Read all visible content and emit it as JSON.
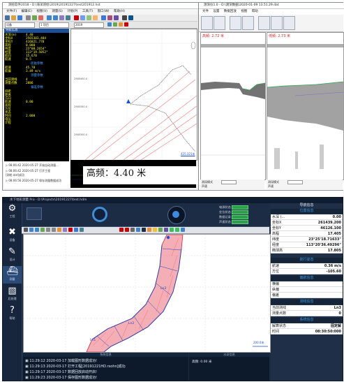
{
  "top": {
    "left_app": {
      "title": "测绘软件2018 - D:\\海洋测绘\\2019\\20191227\\test201912.hst",
      "menu": [
        "文件(F)",
        "编辑(E)",
        "视图(V)",
        "测量(S)",
        "计划(P)",
        "工具(T)",
        "窗口(W)",
        "帮助(H)"
      ],
      "selectors": [
        "设备",
        "1 项目",
        "2019"
      ],
      "info_title": "导航信息",
      "info_rows": [
        {
          "k": "水深(m)",
          "v": "4.40"
        },
        {
          "k": "坐标X",
          "v": "2565303.484"
        },
        {
          "k": "坐标Y",
          "v": "416021.778"
        },
        {
          "k": "高程",
          "v": "0.000"
        },
        {
          "k": "纬度",
          "v": "23°08.2654\""
        },
        {
          "k": "经度",
          "v": "113°19.5052\""
        },
        {
          "k": "航向",
          "v": "15.670"
        },
        {
          "k": "航速",
          "v": "0.5"
        }
      ],
      "section_1": "船舶参数",
      "info_rows_2": [
        {
          "k": "船速",
          "v": "45.78"
        },
        {
          "k": "航偏",
          "v": "3.49 m/s"
        }
      ],
      "section_2": "测量参数",
      "info_rows_3": [
        {
          "k": "当前测线",
          "v": "4"
        },
        {
          "k": "测量点数",
          "v": "2886"
        }
      ],
      "section_3": "偏差参数",
      "info_rows_4": [
        {
          "k": "斜距",
          "v": ""
        },
        {
          "k": "距离",
          "v": ""
        },
        {
          "k": "方向",
          "v": ""
        },
        {
          "k": "航速",
          "v": "0.00"
        },
        {
          "k": "高程",
          "v": ""
        },
        {
          "k": "方位",
          "v": ""
        },
        {
          "k": "状态",
          "v": ""
        },
        {
          "k": "时间",
          "v": "2.000"
        },
        {
          "k": "电压",
          "v": ""
        },
        {
          "k": "计程",
          "v": ""
        }
      ],
      "log_lines": [
        "▷ 08:06:42 2020-05-27 开始自动测量...",
        "▷ 08:06:42 2020-05-27 打开工程",
        "[测绘.dat]成功",
        "▷ 08:06:56 2020-05-27 保存测量数据成功"
      ],
      "scale_label": "425.321米",
      "overlay_label": "高频",
      "overlay_value": "4.40",
      "overlay_unit": "米"
    },
    "right_app": {
      "title": "测深仪1.0 - D:\\测深数据\\2020-01-09 13.51.29.dat",
      "menu": [
        "文件",
        "设置",
        "数据回放",
        "视图",
        "帮助"
      ],
      "left_label": "高频: 2.72 米",
      "right_label": "低频: 2.73 米",
      "status_l": [
        "测深模式",
        "声速"
      ],
      "status_r": [
        "测深模式",
        "声速"
      ]
    }
  },
  "bottom": {
    "title": "水下地形测量 Pro - D:\\Projects\\20191227\\test.hdm",
    "nav": [
      {
        "icon": "gear-icon",
        "glyph": "⚙",
        "label": "工程"
      },
      {
        "icon": "tools-icon",
        "glyph": "✖",
        "label": "设备"
      },
      {
        "icon": "edit-icon",
        "glyph": "✎",
        "label": "设计"
      },
      {
        "icon": "ship-icon",
        "glyph": "⛴",
        "label": "测量"
      },
      {
        "icon": "chart-icon",
        "glyph": "▧",
        "label": "后处理"
      },
      {
        "icon": "help-icon",
        "glyph": "?",
        "label": "帮助"
      }
    ],
    "top_right_labels": [
      "电源状态",
      "定位状态",
      "数据记录",
      "声速状态",
      "导航状态"
    ],
    "top_right_labels_2": [
      "网络连接",
      "外部设备"
    ],
    "nav_info": {
      "title": "导航信息",
      "sub_1": "位置信息",
      "rows_1": [
        {
          "k": "水深 (...",
          "v": "0.00"
        },
        {
          "k": "坐标X",
          "v": "261439.200"
        },
        {
          "k": "坐标Y",
          "v": "46126.100"
        },
        {
          "k": "高程",
          "v": "17.405"
        },
        {
          "k": "纬度",
          "v": "23°25'18.71633\""
        },
        {
          "k": "经度",
          "v": "113°20'36.49296\""
        },
        {
          "k": "椭球高",
          "v": "17.805"
        }
      ],
      "sub_2": "航行姿态",
      "rows_2": [
        {
          "k": "航速",
          "v": "0.36 m/s"
        },
        {
          "k": "方位",
          "v": "-105.60"
        }
      ],
      "sub_3": "偏航信息",
      "rows_3": [
        {
          "k": "横偏",
          "v": ""
        },
        {
          "k": "纵偏",
          "v": ""
        },
        {
          "k": "偏差",
          "v": ""
        }
      ],
      "sub_4": "测线信息",
      "rows_4": [
        {
          "k": "当前测线",
          "v": "Ln3"
        },
        {
          "k": "测量点数",
          "v": "0"
        }
      ],
      "sub_5": "系统信息",
      "rows_5": [
        {
          "k": "解算状态",
          "v": "固定解"
        },
        {
          "k": "时间",
          "v": "08:30:50:000"
        }
      ]
    },
    "log_title": "系统信息",
    "log_lines": [
      "▣ 11:29:12 2020-03-17 加载图形数据成功!",
      "▣ 11:29:13 2020-03-17 打开工程[20191221HD.rsohn]成功",
      "▣ 11:29:17 2020-03-17 数据回放启动开启!",
      "▣ 11:29:23 2020-03-17 保存图形数据成功!"
    ],
    "sound_title": "水深信息",
    "sound_label": "高频:",
    "sound_value": "0.00",
    "sound_unit": "米",
    "map_scale": "200.0米",
    "accent": "#1e4fd6"
  }
}
